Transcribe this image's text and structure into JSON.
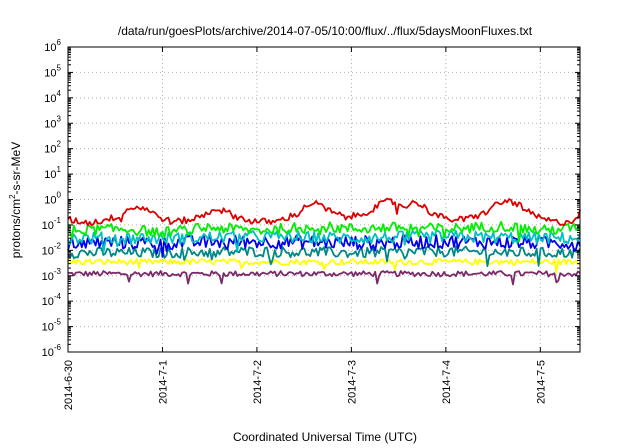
{
  "chart_data": {
    "type": "line",
    "title": "/data/run/goesPlots/archive/2014-07-05/10:00/flux/../flux/5daysMoonFluxes.txt",
    "xlabel": "Coordinated Universal Time (UTC)",
    "ylabel": "protons/cm²-s-sr-MeV",
    "ylabel_parts": {
      "pre": "protons/cm",
      "sup": "2",
      "post": "-s-sr-MeV"
    },
    "y_scale": "log",
    "ylim": [
      1e-06,
      1000000.0
    ],
    "y_ticks": [
      {
        "base": "10",
        "exp": "6"
      },
      {
        "base": "10",
        "exp": "5"
      },
      {
        "base": "10",
        "exp": "4"
      },
      {
        "base": "10",
        "exp": "3"
      },
      {
        "base": "10",
        "exp": "2"
      },
      {
        "base": "10",
        "exp": "1"
      },
      {
        "base": "10",
        "exp": "0"
      },
      {
        "base": "10",
        "exp": "-1"
      },
      {
        "base": "10",
        "exp": "-2"
      },
      {
        "base": "10",
        "exp": "-3"
      },
      {
        "base": "10",
        "exp": "-4"
      },
      {
        "base": "10",
        "exp": "-5"
      },
      {
        "base": "10",
        "exp": "-6"
      }
    ],
    "x_ticks": [
      "2014-6-30",
      "2014-7-1",
      "2014-7-2",
      "2014-7-3",
      "2014-7-4",
      "2014-7-5"
    ],
    "x_range_days": [
      0,
      5.42
    ],
    "grid": true,
    "legend": "none",
    "series": [
      {
        "color": "#dd0000",
        "anchors": [
          [
            0,
            0.16
          ],
          [
            0.25,
            0.12
          ],
          [
            0.5,
            0.2
          ],
          [
            0.65,
            0.45
          ],
          [
            0.8,
            0.5
          ],
          [
            0.95,
            0.22
          ],
          [
            1.1,
            0.13
          ],
          [
            1.3,
            0.16
          ],
          [
            1.45,
            0.25
          ],
          [
            1.55,
            0.45
          ],
          [
            1.65,
            0.35
          ],
          [
            1.8,
            0.2
          ],
          [
            1.95,
            0.14
          ],
          [
            2.2,
            0.13
          ],
          [
            2.45,
            0.3
          ],
          [
            2.55,
            0.7
          ],
          [
            2.65,
            0.65
          ],
          [
            2.8,
            0.3
          ],
          [
            2.95,
            0.2
          ],
          [
            3.1,
            0.25
          ],
          [
            3.3,
            0.6
          ],
          [
            3.4,
            0.9
          ],
          [
            3.55,
            0.55
          ],
          [
            3.7,
            0.8
          ],
          [
            3.85,
            0.3
          ],
          [
            4.0,
            0.17
          ],
          [
            4.2,
            0.16
          ],
          [
            4.4,
            0.28
          ],
          [
            4.5,
            0.55
          ],
          [
            4.65,
            0.9
          ],
          [
            4.75,
            0.7
          ],
          [
            4.85,
            0.35
          ],
          [
            5.0,
            0.18
          ],
          [
            5.2,
            0.12
          ],
          [
            5.35,
            0.15
          ],
          [
            5.42,
            0.3
          ]
        ],
        "noise": 0.22
      },
      {
        "color": "#00ee00",
        "anchors": [
          [
            0,
            0.06
          ],
          [
            0.6,
            0.07
          ],
          [
            1.0,
            0.05
          ],
          [
            1.5,
            0.08
          ],
          [
            2.0,
            0.06
          ],
          [
            2.6,
            0.09
          ],
          [
            3.0,
            0.07
          ],
          [
            3.5,
            0.08
          ],
          [
            4.0,
            0.07
          ],
          [
            4.6,
            0.09
          ],
          [
            5.0,
            0.06
          ],
          [
            5.42,
            0.08
          ]
        ],
        "noise": 0.35
      },
      {
        "color": "#00c0c0",
        "anchors": [
          [
            0,
            0.03
          ],
          [
            1.0,
            0.03
          ],
          [
            2.0,
            0.035
          ],
          [
            3.0,
            0.03
          ],
          [
            4.0,
            0.035
          ],
          [
            5.0,
            0.03
          ],
          [
            5.42,
            0.03
          ]
        ],
        "noise": 0.4
      },
      {
        "color": "#0000ee",
        "anchors": [
          [
            0,
            0.02
          ],
          [
            1.0,
            0.02
          ],
          [
            2.0,
            0.022
          ],
          [
            3.0,
            0.02
          ],
          [
            4.0,
            0.022
          ],
          [
            5.0,
            0.02
          ],
          [
            5.42,
            0.02
          ]
        ],
        "noise": 0.45
      },
      {
        "color": "#008888",
        "anchors": [
          [
            0,
            0.008
          ],
          [
            1.0,
            0.008
          ],
          [
            2.0,
            0.009
          ],
          [
            3.0,
            0.008
          ],
          [
            4.0,
            0.009
          ],
          [
            5.0,
            0.008
          ],
          [
            5.42,
            0.008
          ]
        ],
        "noise": 0.35
      },
      {
        "color": "#ffff00",
        "anchors": [
          [
            0,
            0.0035
          ],
          [
            1.0,
            0.0035
          ],
          [
            2.0,
            0.0035
          ],
          [
            3.0,
            0.0035
          ],
          [
            4.0,
            0.0035
          ],
          [
            5.0,
            0.0035
          ],
          [
            5.42,
            0.0035
          ]
        ],
        "noise": 0.2
      },
      {
        "color": "#7a2a6a",
        "anchors": [
          [
            0,
            0.0012
          ],
          [
            1.0,
            0.0012
          ],
          [
            2.0,
            0.0012
          ],
          [
            3.0,
            0.0012
          ],
          [
            4.0,
            0.0012
          ],
          [
            5.0,
            0.0012
          ],
          [
            5.42,
            0.0012
          ]
        ],
        "noise": 0.18
      }
    ]
  }
}
